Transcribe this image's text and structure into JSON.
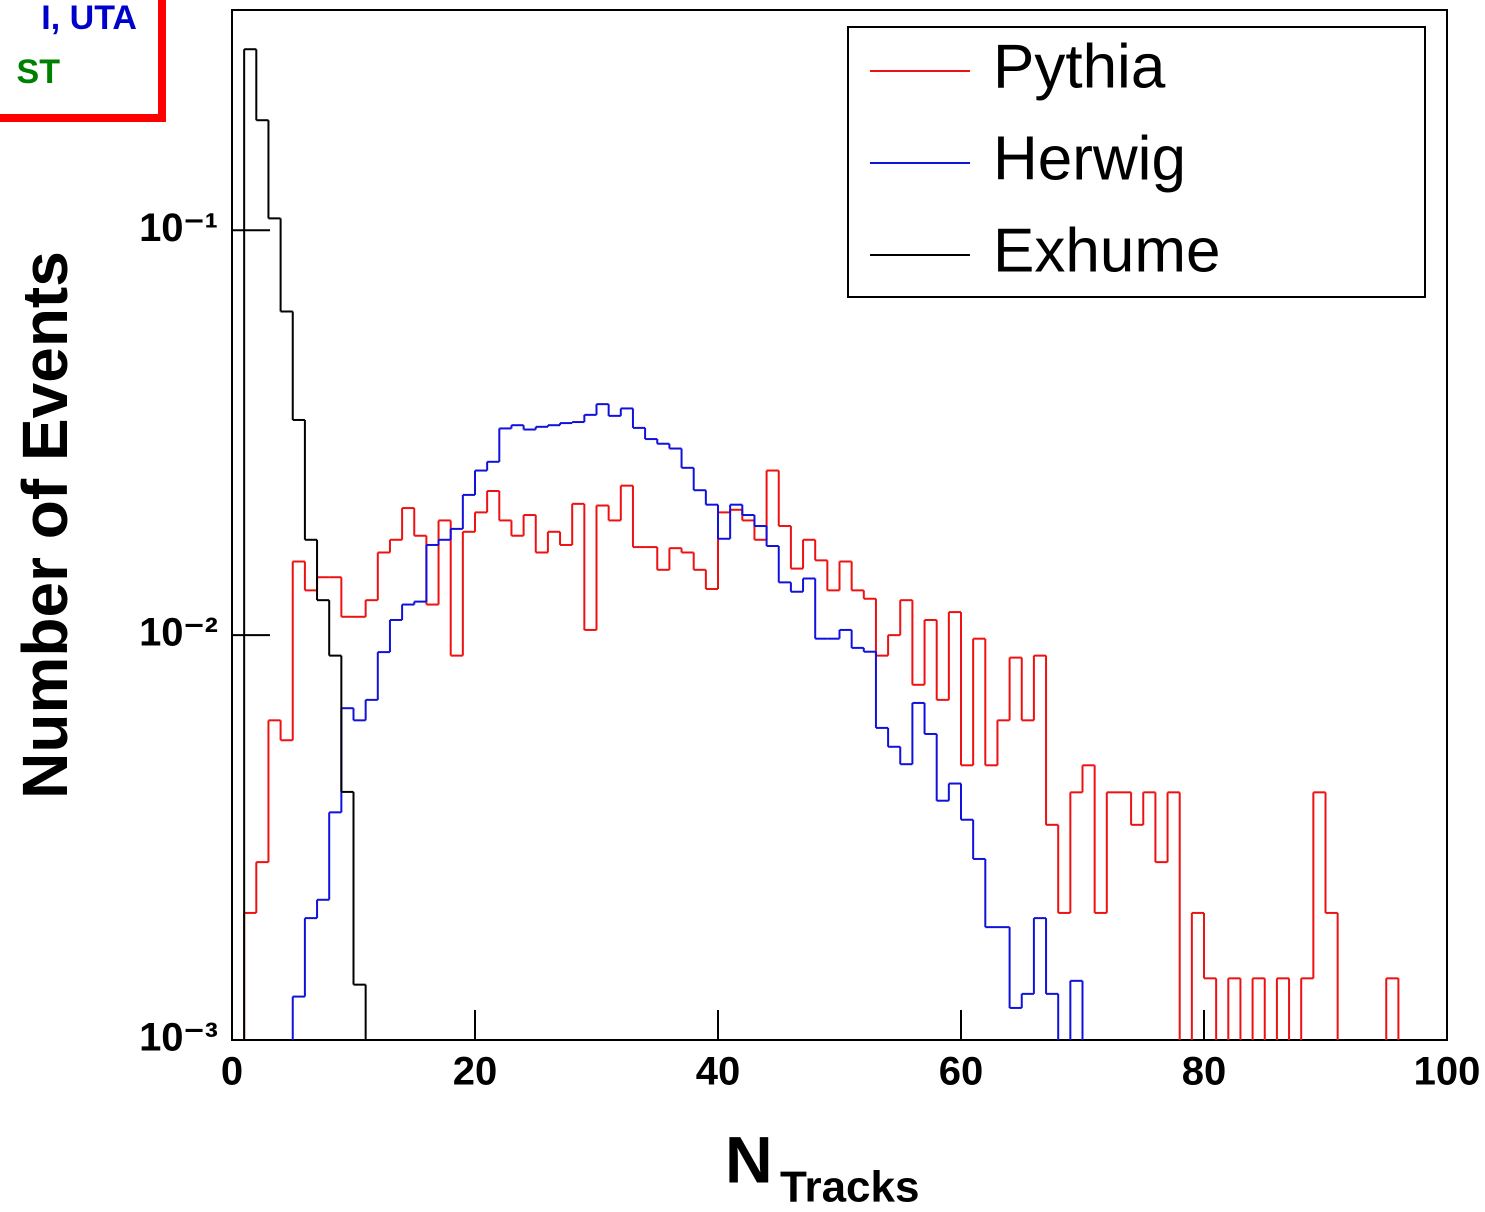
{
  "chart_data": {
    "type": "histogram",
    "annotations": [
      {
        "text": "I, UTA",
        "color": "#0000cc"
      },
      {
        "text": "ST",
        "color": "#008000"
      }
    ],
    "ylabel": "Number of Events",
    "xlabel": {
      "main": "N",
      "subscript": "Tracks"
    },
    "log_y": true,
    "legend": "top-right",
    "xlim": [
      0,
      100
    ],
    "xticks": [
      0,
      20,
      40,
      60,
      80,
      100
    ],
    "ylim": [
      0.001,
      0.35
    ],
    "yticks": [
      {
        "value": 0.001,
        "label": "10⁻³"
      },
      {
        "value": 0.01,
        "label": "10⁻²"
      },
      {
        "value": 0.1,
        "label": "10⁻¹"
      }
    ],
    "bins": [
      0,
      1,
      2,
      3,
      4,
      5,
      6,
      7,
      8,
      9,
      10,
      11,
      12,
      13,
      14,
      15,
      16,
      17,
      18,
      19,
      20,
      21,
      22,
      23,
      24,
      25,
      26,
      27,
      28,
      29,
      30,
      31,
      32,
      33,
      34,
      35,
      36,
      37,
      38,
      39,
      40,
      41,
      42,
      43,
      44,
      45,
      46,
      47,
      48,
      49,
      50,
      51,
      52,
      53,
      54,
      55,
      56,
      57,
      58,
      59,
      60,
      61,
      62,
      63,
      64,
      65,
      66,
      67,
      68,
      69,
      70,
      71,
      72,
      73,
      74,
      75,
      76,
      77,
      78,
      79,
      80,
      81,
      82,
      83,
      84,
      85,
      86,
      87,
      88,
      89,
      90,
      91,
      92,
      93,
      94,
      95,
      96,
      97,
      98,
      99,
      100
    ],
    "series": [
      {
        "name": "Pythia",
        "color": "#ee1111",
        "values": [
          0,
          0.00206,
          0.00275,
          0.00616,
          0.0055,
          0.0152,
          0.0129,
          0.0139,
          0.0139,
          0.0111,
          0.0111,
          0.0122,
          0.016,
          0.0172,
          0.0206,
          0.0176,
          0.0119,
          0.0192,
          0.0089,
          0.018,
          0.0201,
          0.0227,
          0.0192,
          0.0176,
          0.0198,
          0.016,
          0.018,
          0.0167,
          0.0211,
          0.0103,
          0.0209,
          0.0192,
          0.0234,
          0.0165,
          0.0165,
          0.0145,
          0.0164,
          0.016,
          0.0145,
          0.013,
          0.0201,
          0.0204,
          0.0192,
          0.0172,
          0.0255,
          0.0186,
          0.0146,
          0.0172,
          0.0153,
          0.0129,
          0.0152,
          0.0129,
          0.0123,
          0.0089,
          0.01,
          0.0122,
          0.00754,
          0.0109,
          0.00692,
          0.0114,
          0.00477,
          0.0098,
          0.00477,
          0.00616,
          0.0088,
          0.00616,
          0.0089,
          0.0034,
          0.00206,
          0.00409,
          0.00477,
          0.00206,
          0.00409,
          0.00409,
          0.0034,
          0.00409,
          0.00275,
          0.00409,
          0,
          0.00206,
          0.00142,
          0,
          0.00142,
          0,
          0.00142,
          0,
          0.00142,
          0,
          0.00142,
          0.00409,
          0.00206,
          0,
          0,
          0,
          0,
          0.00142,
          0,
          0,
          0,
          0
        ]
      },
      {
        "name": "Herwig",
        "color": "#1111dd",
        "values": [
          0,
          0,
          0,
          0,
          0,
          0.00128,
          0.002,
          0.00222,
          0.00365,
          0.0066,
          0.00616,
          0.00692,
          0.00908,
          0.0109,
          0.0119,
          0.0121,
          0.0167,
          0.0172,
          0.0183,
          0.0222,
          0.0255,
          0.0268,
          0.0324,
          0.033,
          0.0322,
          0.0327,
          0.033,
          0.0334,
          0.0336,
          0.035,
          0.0372,
          0.0348,
          0.0363,
          0.0325,
          0.0305,
          0.0297,
          0.0289,
          0.0259,
          0.0228,
          0.021,
          0.0173,
          0.021,
          0.0198,
          0.0186,
          0.0166,
          0.0135,
          0.0128,
          0.0138,
          0.0098,
          0.0098,
          0.0103,
          0.0093,
          0.0091,
          0.0059,
          0.0053,
          0.0048,
          0.0068,
          0.0057,
          0.0039,
          0.0043,
          0.0035,
          0.0028,
          0.0019,
          0.0019,
          0.0012,
          0.0013,
          0.002,
          0.0013,
          0,
          0.0014,
          0,
          0,
          0,
          0,
          0,
          0,
          0,
          0,
          0,
          0,
          0,
          0,
          0,
          0,
          0,
          0,
          0,
          0,
          0,
          0,
          0,
          0,
          0,
          0,
          0,
          0,
          0,
          0,
          0,
          0
        ]
      },
      {
        "name": "Exhume",
        "color": "#000000",
        "values": [
          0,
          0.28,
          0.187,
          0.107,
          0.063,
          0.034,
          0.0172,
          0.0122,
          0.0089,
          0.0041,
          0.00137,
          0,
          0,
          0,
          0,
          0,
          0,
          0,
          0,
          0,
          0,
          0,
          0,
          0,
          0,
          0,
          0,
          0,
          0,
          0,
          0,
          0,
          0,
          0,
          0,
          0,
          0,
          0,
          0,
          0,
          0,
          0,
          0,
          0,
          0,
          0,
          0,
          0,
          0,
          0,
          0,
          0,
          0,
          0,
          0,
          0,
          0,
          0,
          0,
          0,
          0,
          0,
          0,
          0,
          0,
          0,
          0,
          0,
          0,
          0,
          0,
          0,
          0,
          0,
          0,
          0,
          0,
          0,
          0,
          0,
          0,
          0,
          0,
          0,
          0,
          0,
          0,
          0,
          0,
          0,
          0,
          0,
          0,
          0,
          0,
          0,
          0,
          0,
          0,
          0
        ]
      }
    ]
  }
}
